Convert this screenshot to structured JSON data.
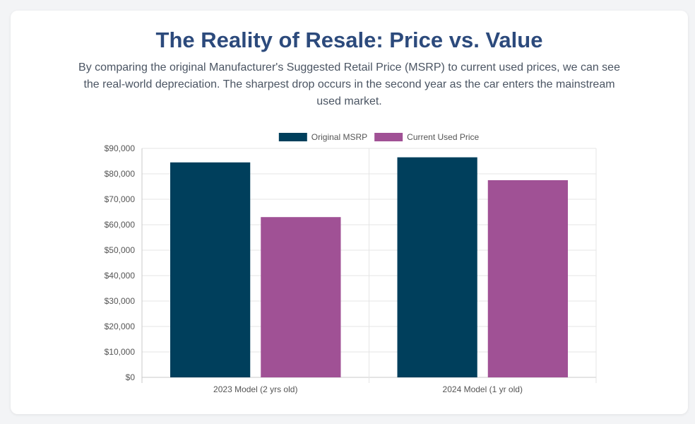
{
  "header": {
    "title": "The Reality of Resale: Price vs. Value",
    "description": "By comparing the original Manufacturer's Suggested Retail Price (MSRP) to current used prices, we can see the real-world depreciation. The sharpest drop occurs in the second year as the car enters the mainstream used market."
  },
  "chart_data": {
    "type": "bar",
    "title": "",
    "xlabel": "",
    "ylabel": "",
    "categories": [
      "2023 Model (2 yrs old)",
      "2024 Model (1 yr old)"
    ],
    "series": [
      {
        "name": "Original MSRP",
        "values": [
          84500,
          86500
        ],
        "color": "#003f5c"
      },
      {
        "name": "Current Used Price",
        "values": [
          63000,
          77500
        ],
        "color": "#a05195"
      }
    ],
    "ylim": [
      0,
      90000
    ],
    "yticks": [
      0,
      10000,
      20000,
      30000,
      40000,
      50000,
      60000,
      70000,
      80000,
      90000
    ],
    "ytick_labels": [
      "$0",
      "$10,000",
      "$20,000",
      "$30,000",
      "$40,000",
      "$50,000",
      "$60,000",
      "$70,000",
      "$80,000",
      "$90,000"
    ],
    "grid": true,
    "legend": "top-center"
  }
}
